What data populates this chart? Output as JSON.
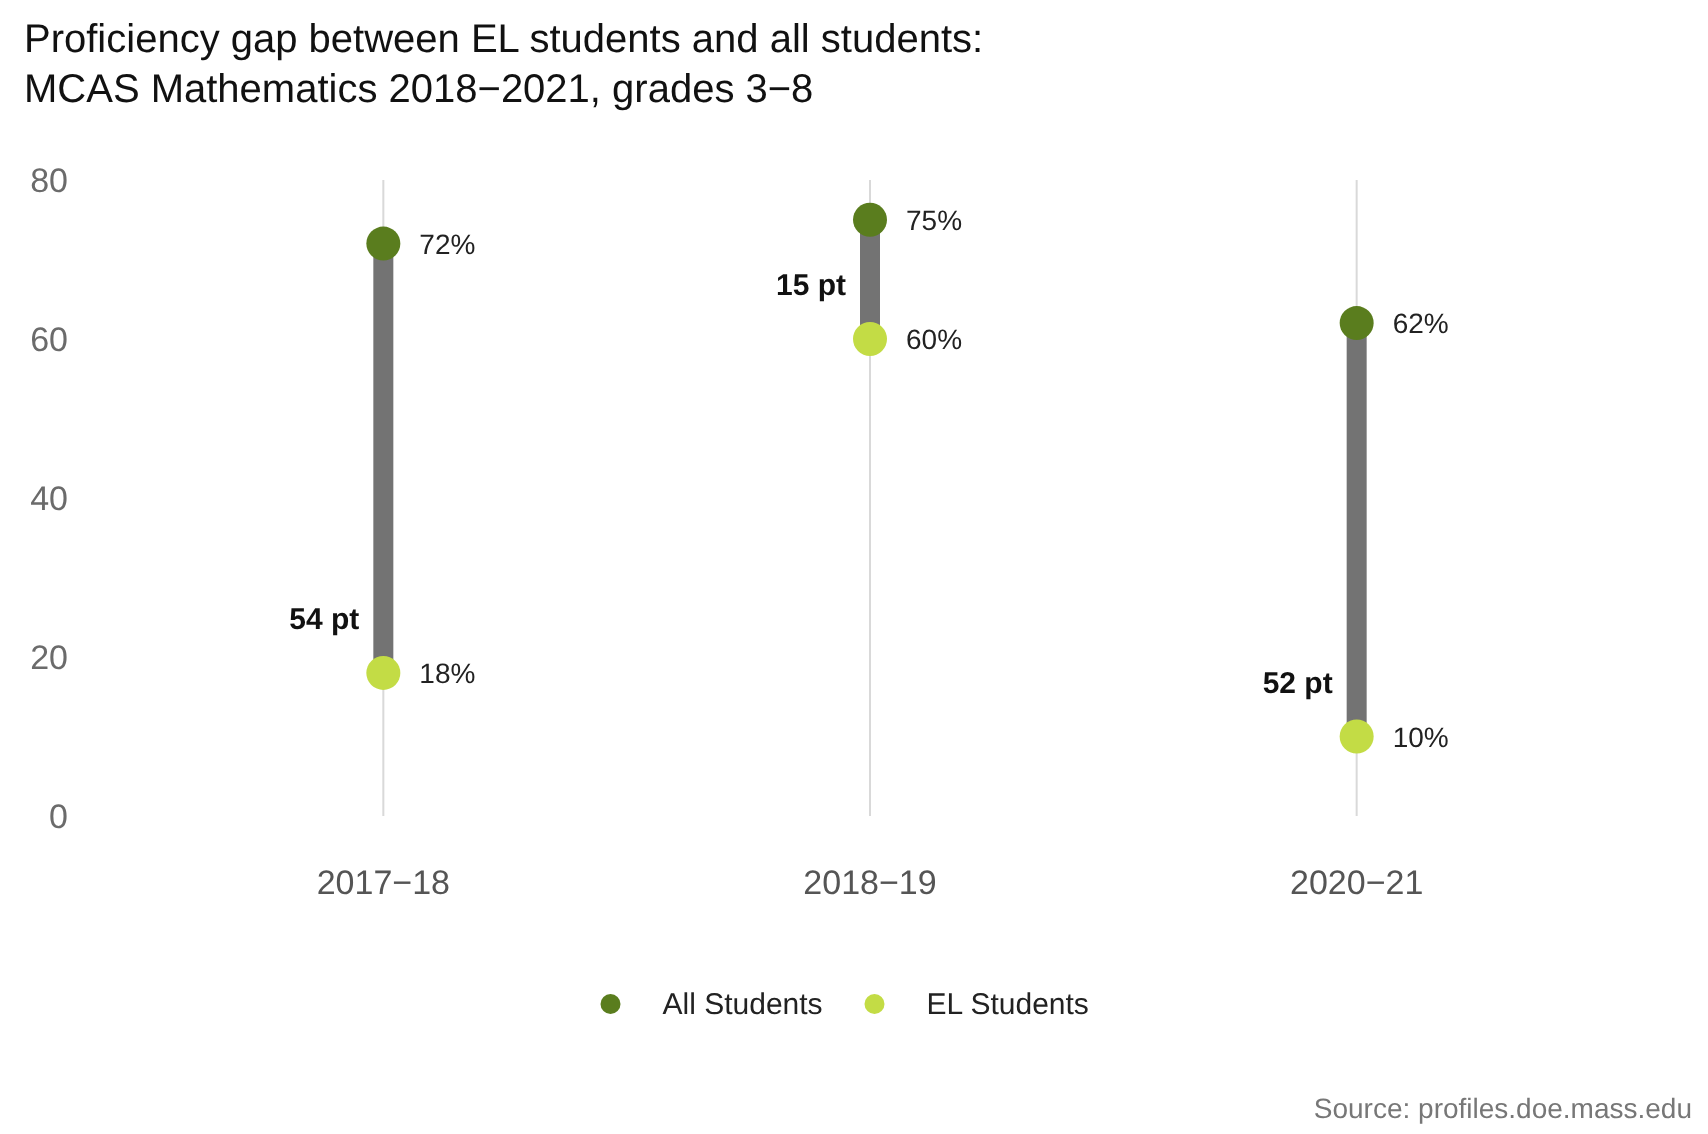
{
  "chart_data": {
    "type": "scatter",
    "title": "Proficiency gap between EL students and all students: MCAS Mathematics 2018−2021, grades 3−8",
    "categories": [
      "2017−18",
      "2018−19",
      "2020−21"
    ],
    "series": [
      {
        "type": "line",
        "color": "#737373",
        "x": [
          "2017−18",
          "2017−18"
        ],
        "values": [
          18,
          72
        ],
        "marker": "none"
      },
      {
        "type": "line",
        "color": "#737373",
        "x": [
          "2018−19",
          "2018−19"
        ],
        "values": [
          60,
          75
        ],
        "marker": "none"
      },
      {
        "type": "line",
        "color": "#737373",
        "x": [
          "2020−21",
          "2020−21"
        ],
        "values": [
          10,
          62
        ],
        "marker": "none"
      },
      {
        "name": "All Students",
        "color": "#5a7d1e",
        "values": [
          72,
          75,
          62
        ],
        "value_labels": [
          "72%",
          "75%",
          "62%"
        ]
      },
      {
        "name": "EL Students",
        "color": "#c3dc45",
        "values": [
          18,
          60,
          10
        ],
        "value_labels": [
          "18%",
          "60%",
          "10%"
        ]
      }
    ],
    "ylim": [
      0,
      80
    ],
    "yticks": [
      0,
      20,
      40,
      60,
      80
    ],
    "grid": "x",
    "legend": "bottom",
    "marker": "circle",
    "annotations": [
      {
        "text": "54 pt",
        "x": "2017−18",
        "y": 18
      },
      {
        "text": "15 pt",
        "x": "2018−19",
        "y": 60
      },
      {
        "text": "52 pt",
        "x": "2020−21",
        "y": 10
      },
      "Source: profiles.doe.mass.edu"
    ]
  }
}
